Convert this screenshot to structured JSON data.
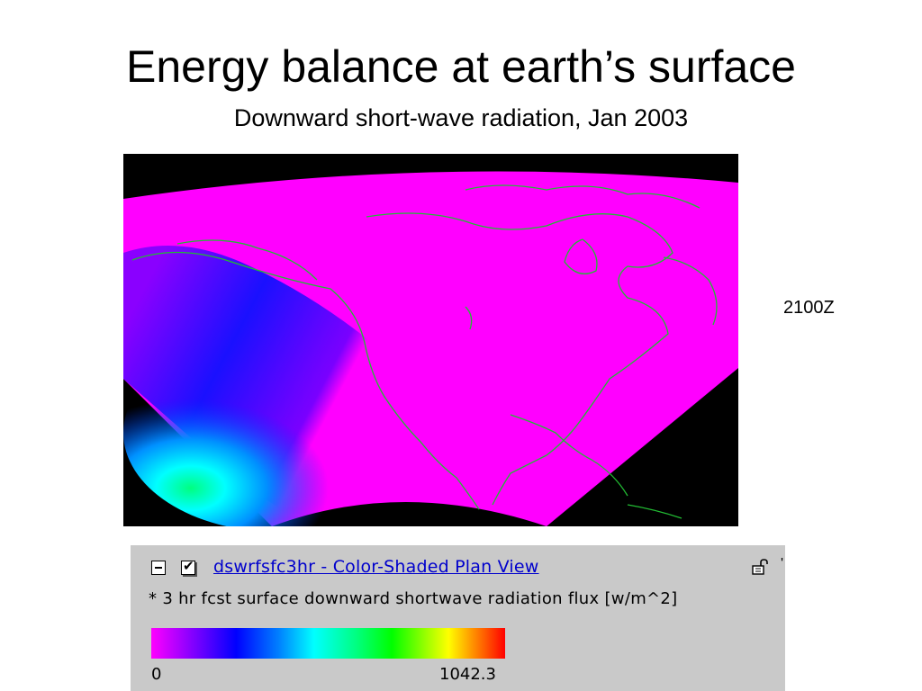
{
  "slide": {
    "title": "Energy balance at earth’s surface",
    "subtitle": "Downward short-wave radiation, Jan 2003"
  },
  "map": {
    "time_label": "2100Z",
    "colors": {
      "background": "#000000",
      "high_flux": "#ff00ff",
      "mid_flux": "#0000ff",
      "low_flux": "#00ffff",
      "coastline": "#22bb33"
    }
  },
  "panel": {
    "layer_link": "dswrfsfc3hr - Color-Shaded Plan View",
    "check_glyph": "✔",
    "tick_glyph": "'",
    "description": "* 3 hr fcst surface downward shortwave radiation flux [w/m^2]",
    "colorbar": {
      "min_label": "0",
      "max_label": "1042.3",
      "colors": [
        "#ff00ff",
        "#8000ff",
        "#0000ff",
        "#0080ff",
        "#00ffff",
        "#00ff80",
        "#00ff00",
        "#80ff00",
        "#ffff00",
        "#ff8000",
        "#ff0000"
      ]
    }
  }
}
